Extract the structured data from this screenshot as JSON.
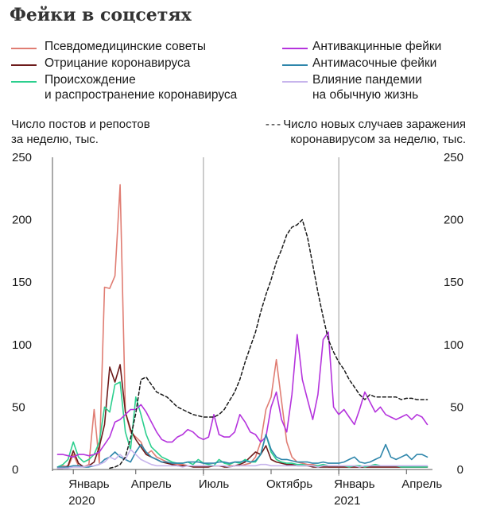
{
  "title": "Фейки в соцсетях",
  "chart_data": {
    "type": "line",
    "title": "Фейки в соцсетях",
    "left_axis_label": "Число постов и репостов за неделю, тыс.",
    "right_axis_label": "Число новых случаев заражения коронавирусом за неделю, тыс.",
    "right_axis_label_prefix": "---",
    "ylim": [
      0,
      250
    ],
    "yticks": [
      "0",
      "50",
      "100",
      "150",
      "200",
      "250"
    ],
    "x_ticks": [
      {
        "week": 2,
        "label": "Январь",
        "sub": "2020"
      },
      {
        "week": 14,
        "label": "Апрель",
        "sub": ""
      },
      {
        "week": 27,
        "label": "Июль",
        "sub": ""
      },
      {
        "week": 40,
        "label": "Октябрь",
        "sub": ""
      },
      {
        "week": 53,
        "label": "Январь",
        "sub": "2021"
      },
      {
        "week": 66,
        "label": "Апрель",
        "sub": ""
      }
    ],
    "x_range": [
      -2,
      71
    ],
    "vlines": [
      27,
      53
    ],
    "grid": false,
    "legend_placement": "top",
    "series": [
      {
        "name": "Псевдомедицинские советы",
        "color": "#e07d73",
        "dash": false,
        "x": [
          -1,
          0,
          1,
          2,
          3,
          4,
          5,
          6,
          7,
          8,
          9,
          10,
          11,
          12,
          13,
          14,
          15,
          16,
          17,
          18,
          19,
          20,
          21,
          22,
          23,
          24,
          25,
          26,
          27,
          28,
          29,
          30,
          31,
          32,
          33,
          34,
          35,
          36,
          37,
          38,
          39,
          40,
          41,
          42,
          43,
          44,
          45,
          46,
          47,
          48,
          49,
          50,
          51,
          52,
          53,
          54,
          55,
          56,
          57,
          58,
          59,
          60,
          61,
          62,
          63,
          64,
          65,
          66,
          67,
          68,
          69,
          70
        ],
        "values": [
          2,
          3,
          2,
          12,
          3,
          2,
          4,
          48,
          5,
          146,
          145,
          155,
          228,
          46,
          30,
          26,
          22,
          12,
          15,
          10,
          8,
          6,
          5,
          4,
          4,
          3,
          3,
          3,
          3,
          3,
          3,
          3,
          2,
          3,
          3,
          3,
          4,
          5,
          10,
          22,
          48,
          58,
          88,
          55,
          22,
          10,
          6,
          5,
          4,
          4,
          3,
          3,
          2,
          2,
          2,
          2,
          2,
          2,
          2,
          2,
          2,
          2,
          2,
          2,
          2,
          2,
          2,
          2,
          2,
          2,
          2,
          2
        ]
      },
      {
        "name": "Отрицание коронавируса",
        "color": "#6d1b1b",
        "dash": false,
        "x": [
          -1,
          0,
          1,
          2,
          3,
          4,
          5,
          6,
          7,
          8,
          9,
          10,
          11,
          12,
          13,
          14,
          15,
          16,
          17,
          18,
          19,
          20,
          21,
          22,
          23,
          24,
          25,
          26,
          27,
          28,
          29,
          30,
          31,
          32,
          33,
          34,
          35,
          36,
          37,
          38,
          39,
          40,
          41,
          42,
          43,
          44,
          45,
          46,
          47,
          48,
          49,
          50,
          51,
          52,
          53,
          54,
          55,
          56,
          57,
          58,
          59,
          60,
          61,
          62,
          63,
          64,
          65,
          66,
          67,
          68,
          69,
          70
        ],
        "values": [
          1,
          1,
          3,
          15,
          5,
          2,
          3,
          6,
          18,
          36,
          82,
          70,
          84,
          46,
          32,
          24,
          18,
          12,
          10,
          8,
          6,
          5,
          4,
          3,
          3,
          3,
          2,
          2,
          2,
          2,
          3,
          3,
          2,
          2,
          3,
          4,
          6,
          10,
          14,
          12,
          19,
          8,
          6,
          5,
          4,
          4,
          3,
          3,
          3,
          2,
          2,
          2,
          2,
          2,
          2,
          2,
          2,
          2,
          2,
          2,
          2,
          2,
          2,
          2,
          2,
          2,
          2,
          2,
          2,
          2,
          2,
          2
        ]
      },
      {
        "name": "Происхождение и распространение коронавируса",
        "color": "#2ccf8e",
        "dash": false,
        "x": [
          -1,
          0,
          1,
          2,
          3,
          4,
          5,
          6,
          7,
          8,
          9,
          10,
          11,
          12,
          13,
          14,
          15,
          16,
          17,
          18,
          19,
          20,
          21,
          22,
          23,
          24,
          25,
          26,
          27,
          28,
          29,
          30,
          31,
          32,
          33,
          34,
          35,
          36,
          37,
          38,
          39,
          40,
          41,
          42,
          43,
          44,
          45,
          46,
          47,
          48,
          49,
          50,
          51,
          52,
          53,
          54,
          55,
          56,
          57,
          58,
          59,
          60,
          61,
          62,
          63,
          64,
          65,
          66,
          67,
          68,
          69,
          70
        ],
        "values": [
          2,
          4,
          8,
          22,
          10,
          6,
          8,
          12,
          22,
          50,
          46,
          68,
          70,
          30,
          16,
          58,
          44,
          28,
          18,
          14,
          10,
          8,
          6,
          5,
          5,
          6,
          4,
          8,
          5,
          4,
          3,
          8,
          5,
          4,
          6,
          5,
          8,
          6,
          6,
          12,
          28,
          14,
          8,
          6,
          5,
          5,
          4,
          4,
          3,
          3,
          3,
          4,
          3,
          3,
          3,
          3,
          2,
          3,
          3,
          2,
          3,
          4,
          3,
          3,
          3,
          3,
          2,
          2,
          2,
          2,
          2,
          2
        ]
      },
      {
        "name": "Антивакцинные фейки",
        "color": "#b534dd",
        "dash": false,
        "x": [
          -1,
          0,
          1,
          2,
          3,
          4,
          5,
          6,
          7,
          8,
          9,
          10,
          11,
          12,
          13,
          14,
          15,
          16,
          17,
          18,
          19,
          20,
          21,
          22,
          23,
          24,
          25,
          26,
          27,
          28,
          29,
          30,
          31,
          32,
          33,
          34,
          35,
          36,
          37,
          38,
          39,
          40,
          41,
          42,
          43,
          44,
          45,
          46,
          47,
          48,
          49,
          50,
          51,
          52,
          53,
          54,
          55,
          56,
          57,
          58,
          59,
          60,
          61,
          62,
          63,
          64,
          65,
          66,
          67,
          68,
          69,
          70
        ],
        "values": [
          12,
          12,
          11,
          10,
          12,
          12,
          11,
          12,
          14,
          20,
          26,
          38,
          40,
          44,
          48,
          48,
          52,
          46,
          38,
          30,
          24,
          22,
          22,
          26,
          28,
          32,
          30,
          26,
          24,
          26,
          44,
          28,
          26,
          26,
          30,
          44,
          38,
          30,
          28,
          22,
          26,
          50,
          62,
          40,
          30,
          60,
          108,
          72,
          56,
          40,
          60,
          104,
          110,
          50,
          44,
          48,
          42,
          36,
          48,
          62,
          54,
          46,
          50,
          44,
          42,
          40,
          42,
          44,
          40,
          44,
          42,
          36
        ]
      },
      {
        "name": "Антимасочные фейки",
        "color": "#2e86ab",
        "dash": false,
        "x": [
          -1,
          0,
          1,
          2,
          3,
          4,
          5,
          6,
          7,
          8,
          9,
          10,
          11,
          12,
          13,
          14,
          15,
          16,
          17,
          18,
          19,
          20,
          21,
          22,
          23,
          24,
          25,
          26,
          27,
          28,
          29,
          30,
          31,
          32,
          33,
          34,
          35,
          36,
          37,
          38,
          39,
          40,
          41,
          42,
          43,
          44,
          45,
          46,
          47,
          48,
          49,
          50,
          51,
          52,
          53,
          54,
          55,
          56,
          57,
          58,
          59,
          60,
          61,
          62,
          63,
          64,
          65,
          66,
          67,
          68,
          69,
          70
        ],
        "values": [
          2,
          2,
          2,
          3,
          3,
          2,
          2,
          3,
          4,
          8,
          10,
          14,
          10,
          8,
          6,
          14,
          20,
          14,
          10,
          8,
          6,
          6,
          5,
          5,
          5,
          6,
          6,
          6,
          5,
          5,
          5,
          6,
          6,
          5,
          6,
          6,
          7,
          6,
          7,
          12,
          28,
          16,
          10,
          8,
          8,
          7,
          6,
          6,
          6,
          5,
          5,
          6,
          5,
          5,
          5,
          6,
          8,
          10,
          6,
          5,
          6,
          8,
          10,
          20,
          10,
          8,
          10,
          12,
          8,
          12,
          12,
          10
        ]
      },
      {
        "name": "Влияние пандемии на обычную жизнь",
        "color": "#c7b5ec",
        "dash": false,
        "x": [
          -1,
          0,
          1,
          2,
          3,
          4,
          5,
          6,
          7,
          8,
          9,
          10,
          11,
          12,
          13,
          14,
          15,
          16,
          17,
          18,
          19,
          20,
          21,
          22,
          23,
          24,
          25,
          26,
          27,
          28,
          29,
          30,
          31,
          32,
          33,
          34,
          35,
          36,
          37,
          38,
          39,
          40,
          41,
          42,
          43,
          44,
          45,
          46,
          47,
          48,
          49,
          50,
          51,
          52,
          53,
          54,
          55,
          56,
          57,
          58,
          59,
          60,
          61,
          62,
          63,
          64,
          65,
          66,
          67,
          68,
          69,
          70
        ],
        "values": [
          1,
          1,
          1,
          2,
          2,
          2,
          3,
          3,
          4,
          6,
          10,
          8,
          12,
          8,
          16,
          12,
          8,
          6,
          4,
          3,
          3,
          3,
          3,
          3,
          2,
          3,
          3,
          3,
          3,
          3,
          3,
          3,
          3,
          2,
          3,
          3,
          3,
          3,
          3,
          4,
          4,
          3,
          3,
          3,
          3,
          3,
          3,
          3,
          3,
          3,
          2,
          3,
          3,
          3,
          3,
          3,
          3,
          3,
          2,
          3,
          3,
          3,
          3,
          3,
          3,
          3,
          3,
          3,
          3,
          3,
          3,
          3
        ]
      },
      {
        "name": "Число новых случаев заражения коронавирусом за неделю, тыс.",
        "color": "#1a1a1a",
        "dash": true,
        "x": [
          9,
          10,
          11,
          12,
          13,
          14,
          15,
          16,
          17,
          18,
          19,
          20,
          21,
          22,
          23,
          24,
          25,
          26,
          27,
          28,
          29,
          30,
          31,
          32,
          33,
          34,
          35,
          36,
          37,
          38,
          39,
          40,
          41,
          42,
          43,
          44,
          45,
          46,
          47,
          48,
          49,
          50,
          51,
          52,
          53,
          54,
          55,
          56,
          57,
          58,
          59,
          60,
          61,
          62,
          63,
          64,
          65,
          66,
          67,
          68,
          69,
          70
        ],
        "values": [
          1,
          2,
          4,
          10,
          25,
          45,
          72,
          74,
          68,
          62,
          60,
          58,
          54,
          50,
          48,
          46,
          44,
          43,
          42,
          42,
          42,
          44,
          48,
          55,
          62,
          72,
          86,
          98,
          110,
          126,
          140,
          152,
          166,
          176,
          188,
          194,
          196,
          200,
          186,
          164,
          142,
          122,
          104,
          94,
          86,
          80,
          72,
          66,
          60,
          56,
          60,
          58,
          58,
          58,
          58,
          58,
          56,
          57,
          57,
          56,
          56,
          56
        ]
      }
    ]
  },
  "legend": {
    "col1": [
      {
        "label": "Псевдомедицинские советы",
        "color": "#e07d73"
      },
      {
        "label": "Отрицание коронавируса",
        "color": "#6d1b1b"
      },
      {
        "label_line1": "Происхождение",
        "label_line2": "и распространение коронавируса",
        "color": "#2ccf8e"
      }
    ],
    "col2": [
      {
        "label": "Антивакцинные фейки",
        "color": "#b534dd"
      },
      {
        "label": "Антимасочные фейки",
        "color": "#2e86ab"
      },
      {
        "label_line1": "Влияние пандемии",
        "label_line2": "на обычную жизнь",
        "color": "#c7b5ec"
      }
    ]
  },
  "axis_titles": {
    "left_line1": "Число постов и репостов",
    "left_line2": "за неделю, тыс.",
    "right_line1": "Число новых случаев заражения",
    "right_line2": "коронавирусом за неделю, тыс.",
    "right_dash": "- - -"
  }
}
